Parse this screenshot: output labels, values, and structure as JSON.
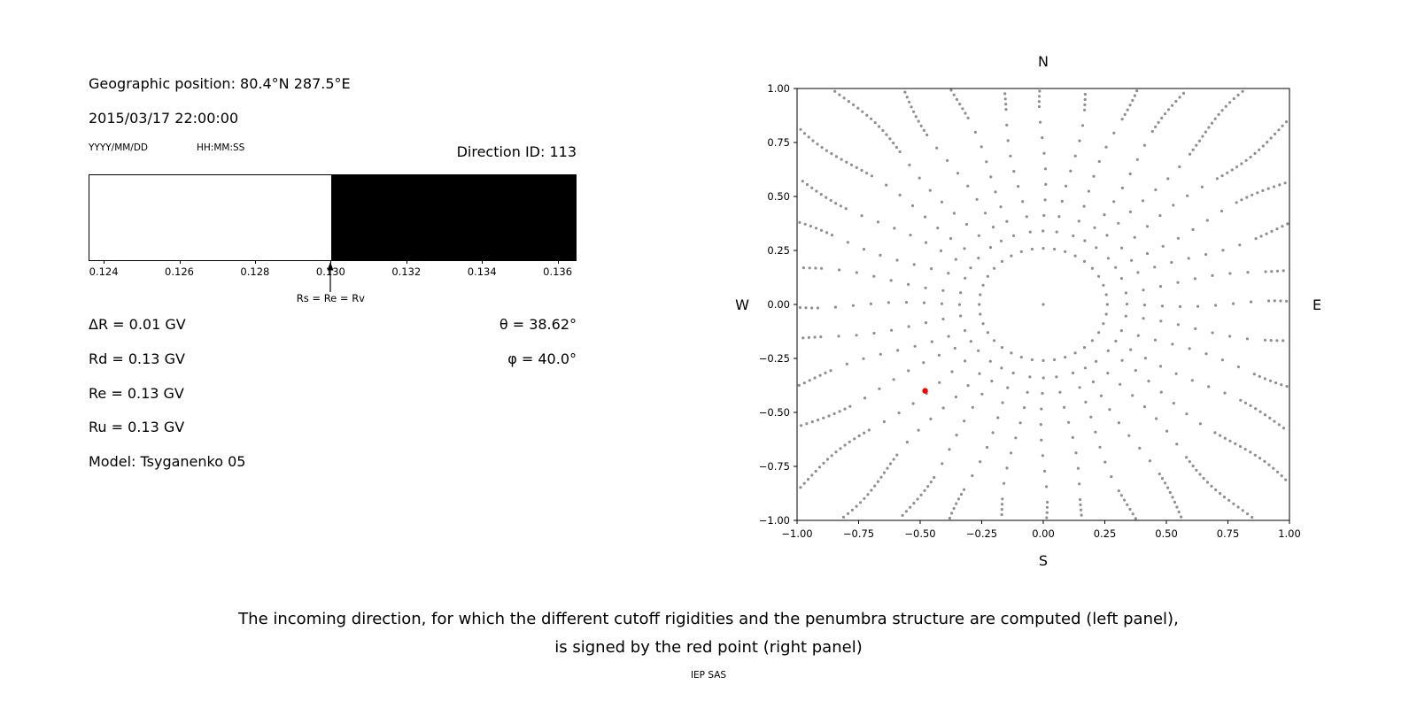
{
  "left_panel": {
    "geo_position": "Geographic position: 80.4°N 287.5°E",
    "datetime": "2015/03/17 22:00:00",
    "date_format_label": "YYYY/MM/DD",
    "time_format_label": "HH:MM:SS",
    "direction_id": "Direction ID: 113",
    "params": [
      "ΔR = 0.01 GV",
      "Rd = 0.13 GV",
      "Re = 0.13 GV",
      "Ru = 0.13 GV",
      "Model: Tsyganenko 05"
    ],
    "theta": "θ = 38.62°",
    "phi": "φ = 40.0°"
  },
  "right_panel": {
    "compass": {
      "north": "N",
      "south": "S",
      "east": "E",
      "west": "W"
    }
  },
  "caption": {
    "line1": "The incoming direction, for which the different cutoff rigidities and the penumbra structure are computed (left panel),",
    "line2": "is signed by the red point (right panel)",
    "credit": "IEP SAS"
  },
  "chart_data": [
    {
      "name": "penumbra-structure-bar",
      "type": "bar",
      "units": "GV",
      "xlim": [
        0.1236,
        0.1365
      ],
      "x_ticks": [
        {
          "value": 0.124,
          "label": "0.124"
        },
        {
          "value": 0.126,
          "label": "0.126"
        },
        {
          "value": 0.128,
          "label": "0.128"
        },
        {
          "value": 0.13,
          "label": "0.130"
        },
        {
          "value": 0.132,
          "label": "0.132"
        },
        {
          "value": 0.134,
          "label": "0.134"
        },
        {
          "value": 0.136,
          "label": "0.136"
        }
      ],
      "segments": [
        {
          "from": 0.1236,
          "to": 0.13,
          "color": "#ffffff",
          "meaning": "allowed rigidity band"
        },
        {
          "from": 0.13,
          "to": 0.1365,
          "color": "#000000",
          "meaning": "forbidden rigidity band"
        }
      ],
      "marker": {
        "value": 0.13,
        "label": "Rs = Re = Rv"
      }
    },
    {
      "name": "incoming-directions-scatter",
      "type": "scatter",
      "xlim": [
        -1,
        1
      ],
      "ylim": [
        -1,
        1
      ],
      "grid": false,
      "compass_labels": {
        "top": "N",
        "bottom": "S",
        "left": "W",
        "right": "E"
      },
      "x_ticks": [
        {
          "value": -1.0,
          "label": "−1.00"
        },
        {
          "value": -0.75,
          "label": "−0.75"
        },
        {
          "value": -0.5,
          "label": "−0.50"
        },
        {
          "value": -0.25,
          "label": "−0.25"
        },
        {
          "value": 0.0,
          "label": "0.00"
        },
        {
          "value": 0.25,
          "label": "0.25"
        },
        {
          "value": 0.5,
          "label": "0.50"
        },
        {
          "value": 0.75,
          "label": "0.75"
        },
        {
          "value": 1.0,
          "label": "1.00"
        }
      ],
      "y_ticks": [
        {
          "value": 1.0,
          "label": "1.00"
        },
        {
          "value": 0.75,
          "label": "0.75"
        },
        {
          "value": 0.5,
          "label": "0.50"
        },
        {
          "value": 0.25,
          "label": "0.25"
        },
        {
          "value": 0.0,
          "label": "0.00"
        },
        {
          "value": -0.25,
          "label": "−0.25"
        },
        {
          "value": -0.5,
          "label": "−0.50"
        },
        {
          "value": -0.75,
          "label": "−0.75"
        },
        {
          "value": -1.0,
          "label": "−1.00"
        }
      ],
      "gray_pattern": {
        "description": "direction grid: inner ring of dots plus 36 radial spokes (10° apart) with dense outer tails, clipped to the axes box",
        "num_spokes": 36,
        "inner_ring_radius": 0.26,
        "spoke_start_radius": 0.34,
        "spoke_max_radius": 1.42,
        "sparse_spacing": 0.072,
        "dense_from_radius": 0.9,
        "dense_spacing": 0.024,
        "clip": 0.995,
        "center_dot": true,
        "dot_color": "#8f8f8f",
        "dot_radius_px": 1.6
      },
      "red_point": {
        "x": -0.48,
        "y": -0.4,
        "color": "#ff0000",
        "radius_px": 3.2
      }
    }
  ]
}
